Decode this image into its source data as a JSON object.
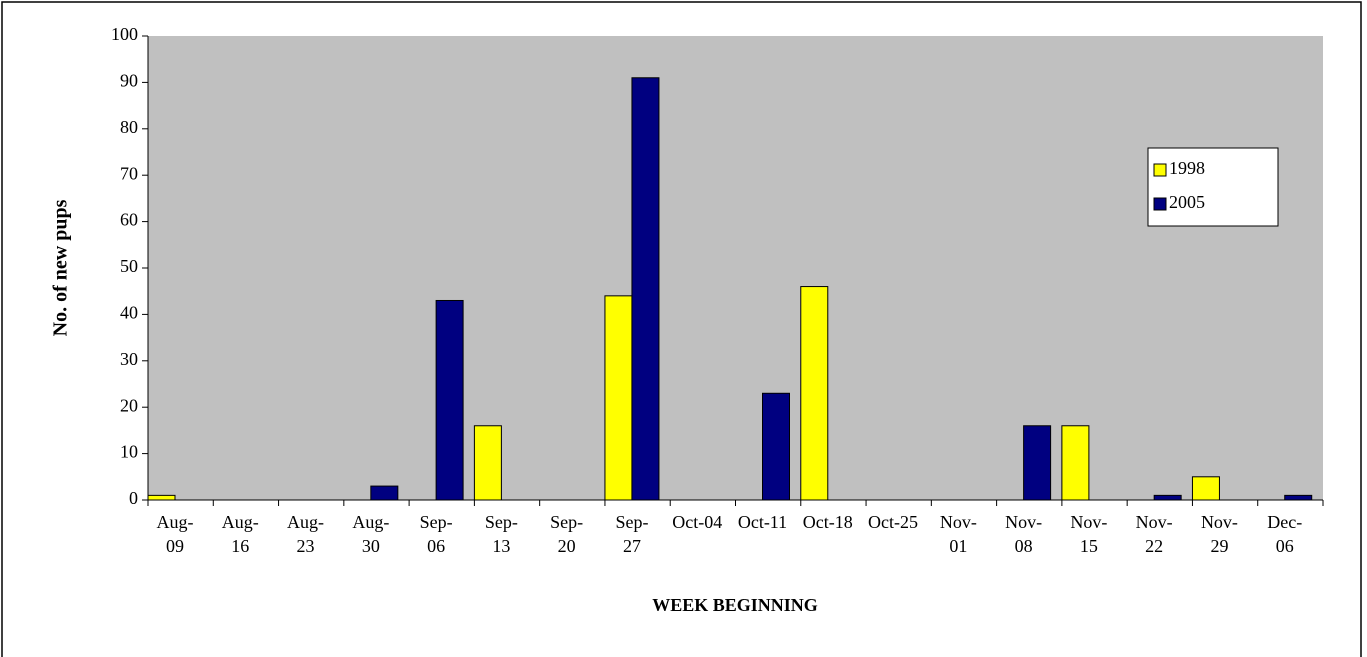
{
  "chart_data": {
    "type": "bar",
    "categories": [
      "Aug-09",
      "Aug-16",
      "Aug-23",
      "Aug-30",
      "Sep-06",
      "Sep-13",
      "Sep-20",
      "Sep-27",
      "Oct-04",
      "Oct-11",
      "Oct-18",
      "Oct-25",
      "Nov-01",
      "Nov-08",
      "Nov-15",
      "Nov-22",
      "Nov-29",
      "Dec-06"
    ],
    "series": [
      {
        "name": "1998",
        "color": "#ffff00",
        "values": [
          1,
          0,
          0,
          0,
          0,
          16,
          0,
          44,
          0,
          0,
          46,
          0,
          0,
          0,
          16,
          0,
          5,
          0
        ]
      },
      {
        "name": "2005",
        "color": "#000080",
        "values": [
          0,
          0,
          0,
          3,
          43,
          0,
          0,
          91,
          0,
          23,
          0,
          0,
          0,
          16,
          0,
          1,
          0,
          1
        ]
      }
    ],
    "xlabel": "WEEK BEGINNING",
    "ylabel": "No. of new pups",
    "ylim": [
      0,
      100
    ],
    "yticks": [
      0,
      10,
      20,
      30,
      40,
      50,
      60,
      70,
      80,
      90,
      100
    ],
    "grid": false,
    "legend": "upper right"
  }
}
